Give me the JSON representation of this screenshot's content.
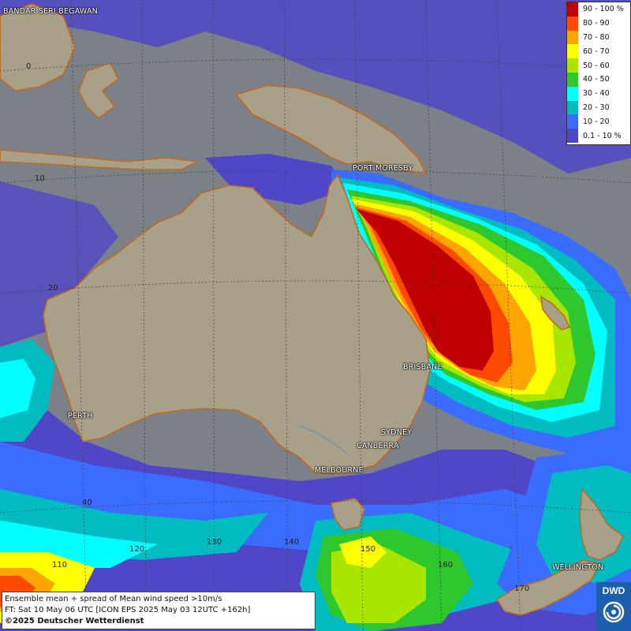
{
  "legend": {
    "items": [
      {
        "label": "90 - 100 %",
        "color": "#c00000"
      },
      {
        "label": "80 - 90",
        "color": "#ff4a00"
      },
      {
        "label": "70 - 80",
        "color": "#ffa500"
      },
      {
        "label": "60 - 70",
        "color": "#ffff00"
      },
      {
        "label": "50 - 60",
        "color": "#a8e600"
      },
      {
        "label": "40 - 50",
        "color": "#2ec82e"
      },
      {
        "label": "30 - 40",
        "color": "#00ffff"
      },
      {
        "label": "20 - 30",
        "color": "#00bcc0"
      },
      {
        "label": "10 - 20",
        "color": "#3a6cff"
      },
      {
        "label": "0.1 - 10 %",
        "color": "#5046c8"
      }
    ]
  },
  "cities": {
    "bandar": "BANDAR SERI BEGAWAN",
    "port_moresby": "PORT MORESBY",
    "brisbane": "BRISBANE",
    "perth": "PERTH",
    "sydney": "SYDNEY",
    "canberra": "CANBERRA",
    "melbourne": "MELBOURNE",
    "wellington": "WELLINGTON"
  },
  "grid_labels": {
    "lat_0": "0",
    "lat_10": "10",
    "lat_20": "20",
    "lat_40": "40",
    "lon_110": "110",
    "lon_120": "120",
    "lon_130": "130",
    "lon_140": "140",
    "lon_150": "150",
    "lon_160": "160",
    "lon_170": "170"
  },
  "caption": {
    "line1": "Ensemble mean + spread of Mean wind speed >10m/s",
    "line2": "FT: Sat 10 May 06 UTC [ICON EPS 2025 May 03 12UTC +162h]",
    "line3": "©2025 Deutscher Wetterdienst"
  },
  "logo": {
    "text": "DWD",
    "color": "#1b5fae"
  }
}
